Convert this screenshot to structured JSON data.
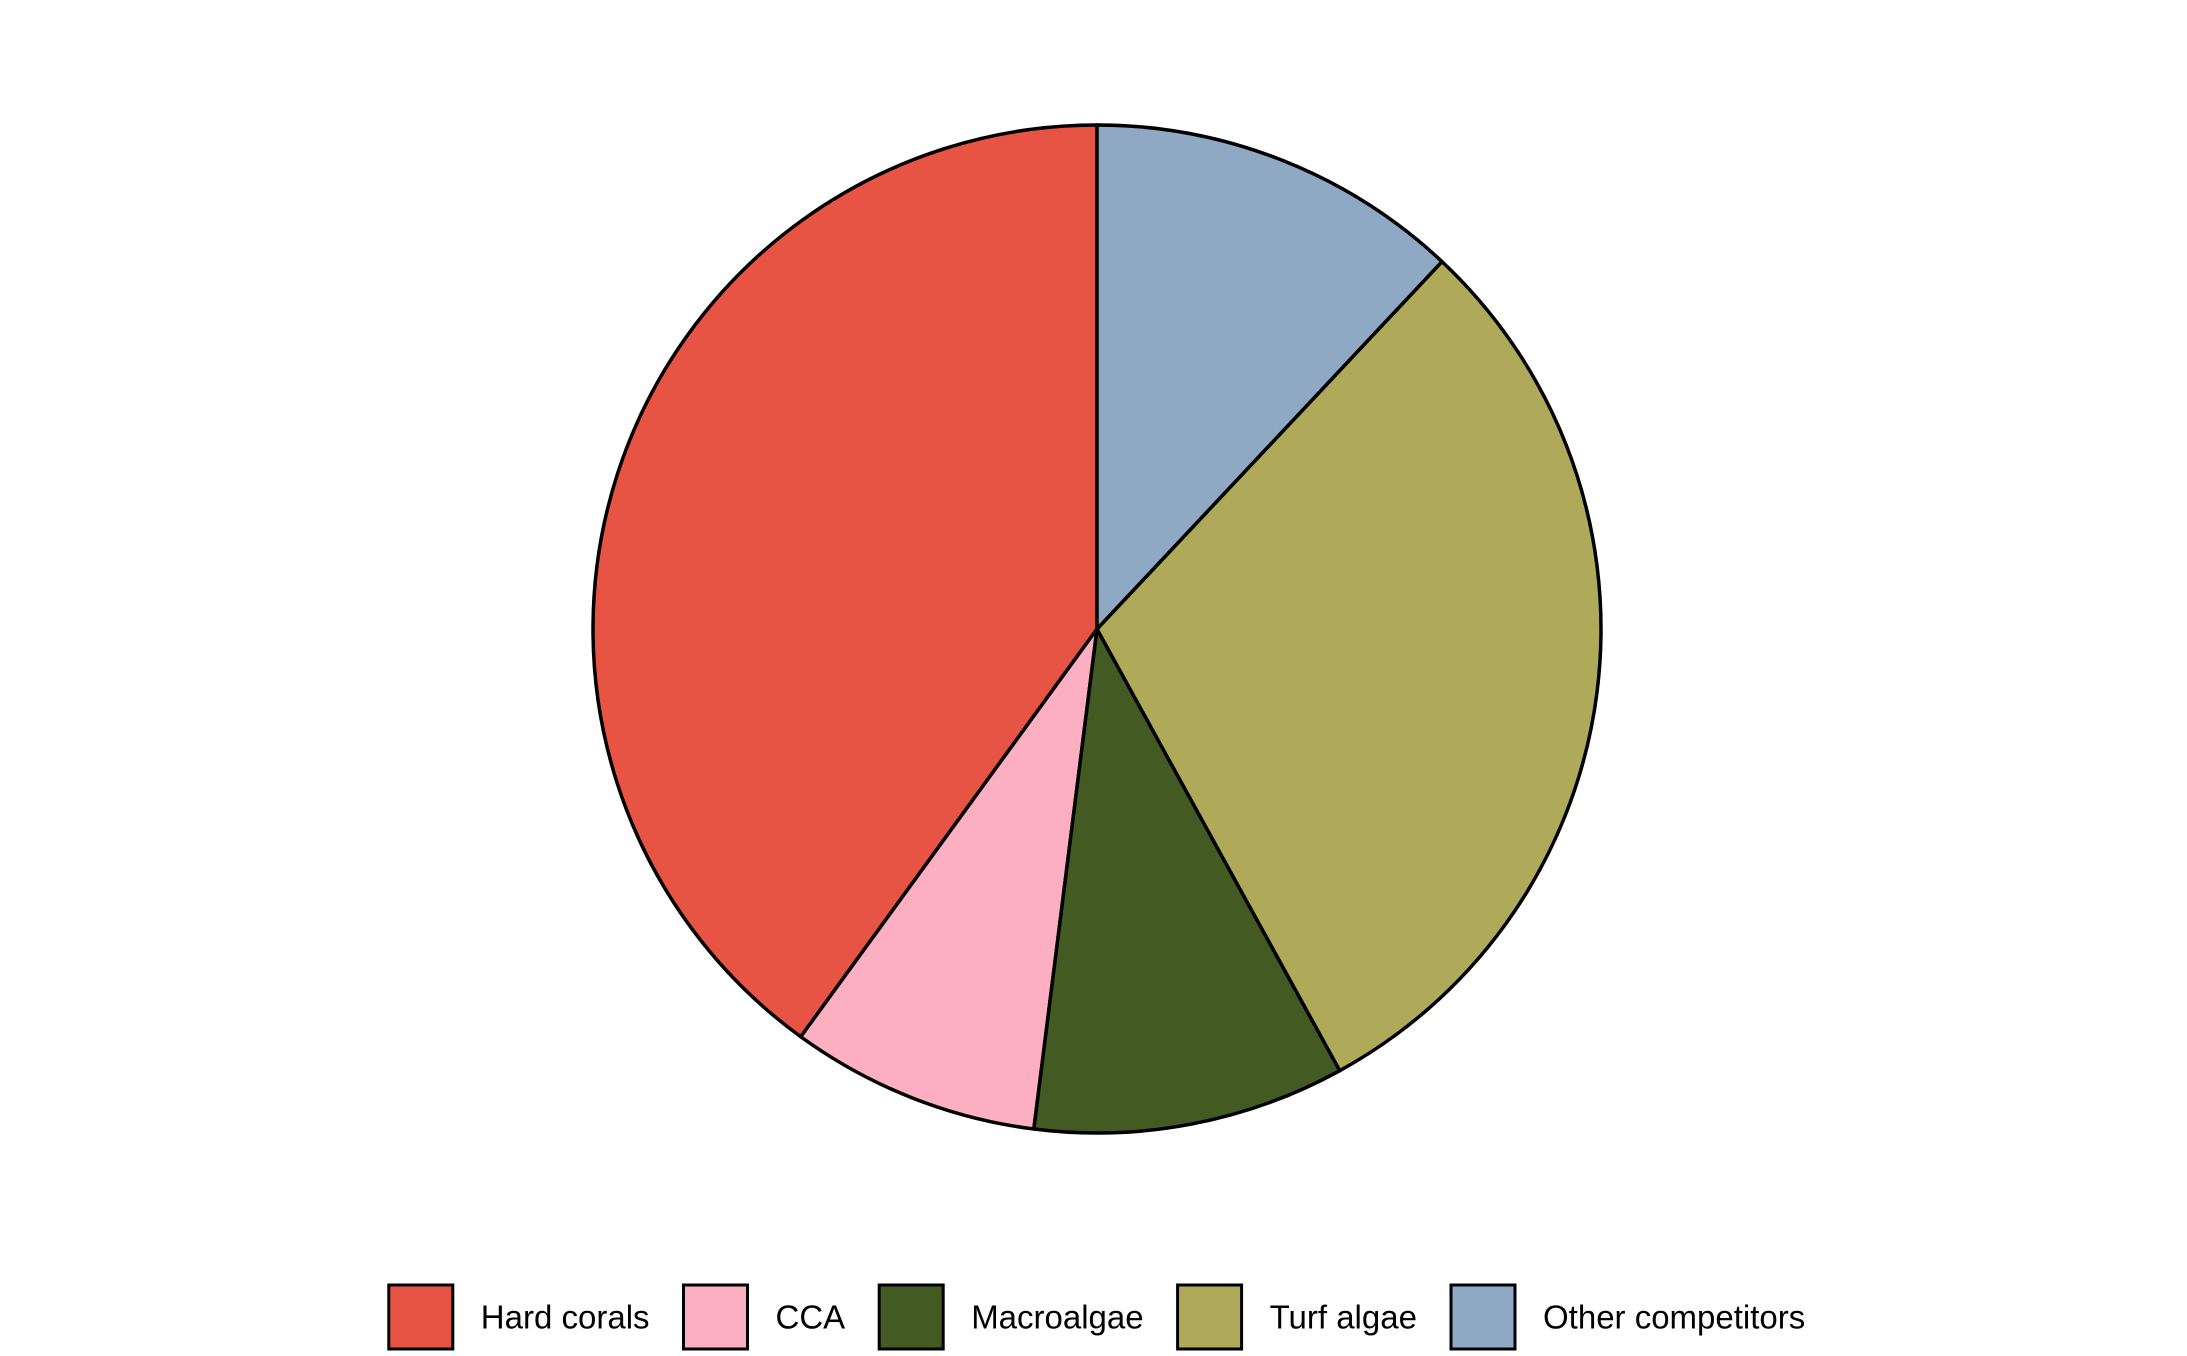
{
  "chart_data": {
    "type": "pie",
    "title": "",
    "start": "top",
    "direction": "counterclockwise",
    "legend_position": "bottom",
    "categories": [
      "Hard corals",
      "CCA",
      "Macroalgae",
      "Turf algae",
      "Other competitors"
    ],
    "values": [
      40,
      8,
      10,
      30,
      12
    ],
    "colors": [
      "#E85444",
      "#FBAFC0",
      "#435A22",
      "#AFAA59",
      "#8FA8C3"
    ],
    "edge_color": "#000000"
  }
}
